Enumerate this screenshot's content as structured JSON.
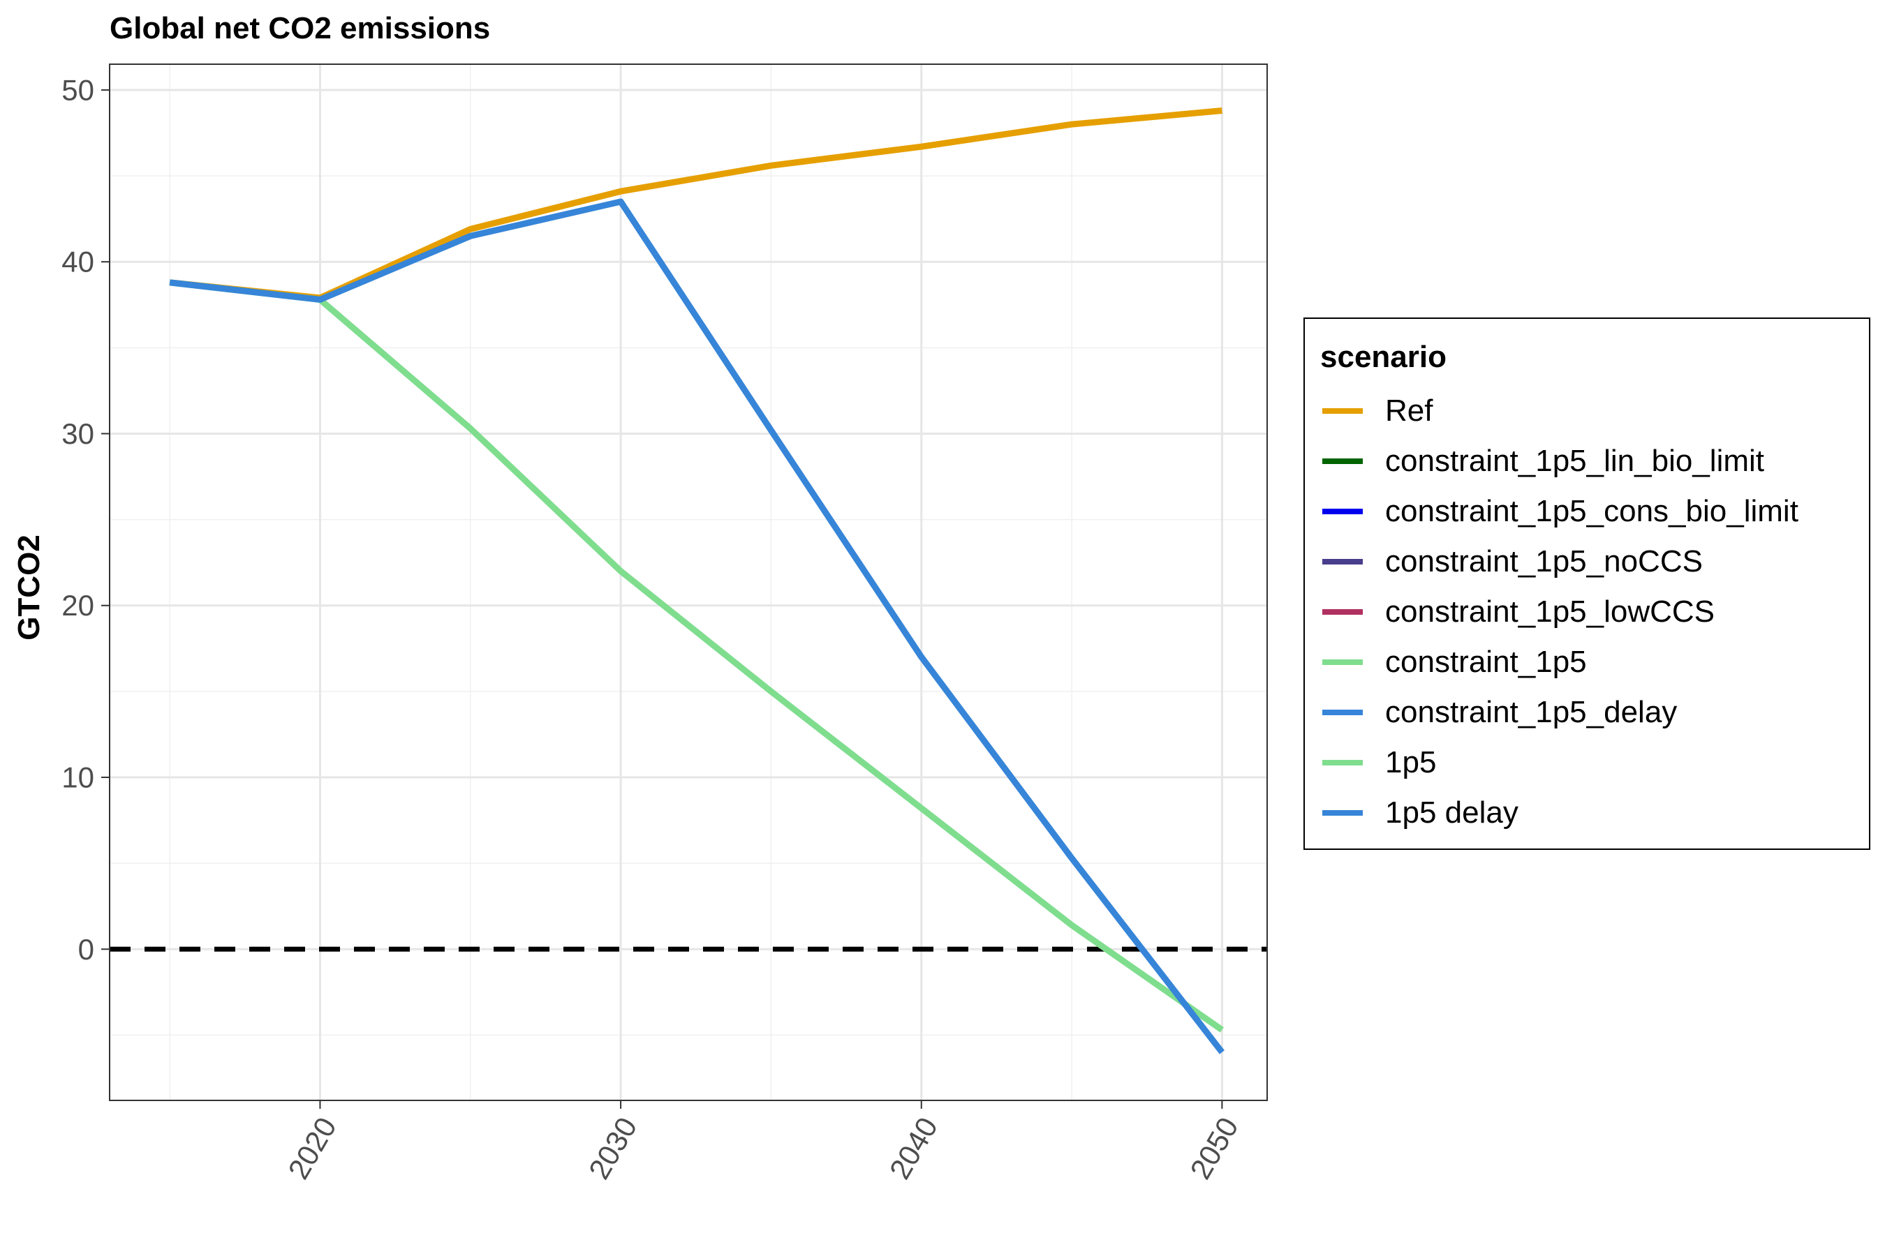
{
  "chart_data": {
    "type": "line",
    "title": "Global net CO2 emissions",
    "xlabel": "",
    "ylabel": "GTCO2",
    "xlim": [
      2013,
      2051.5
    ],
    "ylim": [
      -8.8,
      51.5
    ],
    "x_ticks": [
      2020,
      2030,
      2040,
      2050
    ],
    "y_ticks": [
      0,
      10,
      20,
      30,
      40,
      50
    ],
    "x_tick_labels": [
      "2020",
      "2030",
      "2040",
      "2050"
    ],
    "y_tick_labels": [
      "0",
      "10",
      "20",
      "30",
      "40",
      "50"
    ],
    "grid": true,
    "reference_line": {
      "y": 0,
      "style": "dashed",
      "color": "#000000"
    },
    "legend": {
      "title": "scenario",
      "position": "right",
      "entries": [
        {
          "name": "Ref",
          "color": "#E69F00"
        },
        {
          "name": "constraint_1p5_lin_bio_limit",
          "color": "#006400"
        },
        {
          "name": "constraint_1p5_cons_bio_limit",
          "color": "#0000EE"
        },
        {
          "name": "constraint_1p5_noCCS",
          "color": "#483D8B"
        },
        {
          "name": "constraint_1p5_lowCCS",
          "color": "#B03060"
        },
        {
          "name": "constraint_1p5",
          "color": "#7FDD8E"
        },
        {
          "name": "constraint_1p5_delay",
          "color": "#3685D8"
        },
        {
          "name": "1p5",
          "color": "#7FDD8E"
        },
        {
          "name": "1p5 delay",
          "color": "#3685D8"
        }
      ]
    },
    "series": [
      {
        "name": "Ref",
        "color": "#E69F00",
        "x": [
          2015,
          2020,
          2025,
          2030,
          2035,
          2040,
          2045,
          2050
        ],
        "y": [
          38.8,
          37.9,
          41.9,
          44.1,
          45.6,
          46.7,
          48.0,
          48.8
        ]
      },
      {
        "name": "1p5",
        "color": "#7FDD8E",
        "x": [
          2015,
          2020,
          2025,
          2030,
          2035,
          2040,
          2045,
          2050
        ],
        "y": [
          38.8,
          37.8,
          30.3,
          22.0,
          15.0,
          8.2,
          1.4,
          -4.7
        ]
      },
      {
        "name": "1p5 delay",
        "color": "#3685D8",
        "x": [
          2015,
          2020,
          2025,
          2030,
          2035,
          2040,
          2045,
          2050
        ],
        "y": [
          38.8,
          37.8,
          41.5,
          43.5,
          30.2,
          17.0,
          5.3,
          -6.0
        ]
      }
    ]
  }
}
